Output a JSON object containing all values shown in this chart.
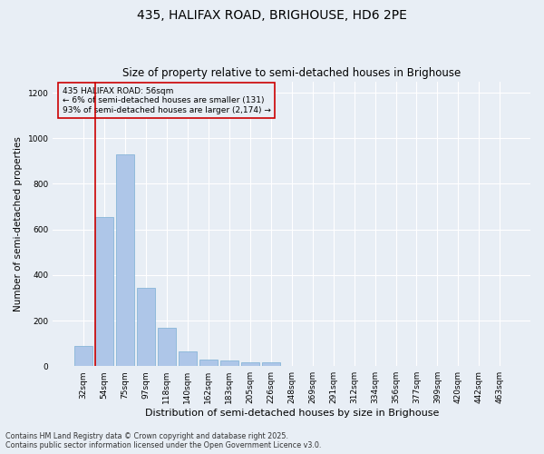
{
  "title": "435, HALIFAX ROAD, BRIGHOUSE, HD6 2PE",
  "subtitle": "Size of property relative to semi-detached houses in Brighouse",
  "xlabel": "Distribution of semi-detached houses by size in Brighouse",
  "ylabel": "Number of semi-detached properties",
  "categories": [
    "32sqm",
    "54sqm",
    "75sqm",
    "97sqm",
    "118sqm",
    "140sqm",
    "162sqm",
    "183sqm",
    "205sqm",
    "226sqm",
    "248sqm",
    "269sqm",
    "291sqm",
    "312sqm",
    "334sqm",
    "356sqm",
    "377sqm",
    "399sqm",
    "420sqm",
    "442sqm",
    "463sqm"
  ],
  "values": [
    90,
    655,
    930,
    345,
    170,
    65,
    30,
    25,
    18,
    15,
    0,
    0,
    0,
    0,
    0,
    0,
    0,
    0,
    0,
    0,
    0
  ],
  "bar_color": "#aec6e8",
  "bar_edge_color": "#7aafd4",
  "background_color": "#e8eef5",
  "grid_color": "#ffffff",
  "vline_color": "#cc0000",
  "annotation_text": "435 HALIFAX ROAD: 56sqm\n← 6% of semi-detached houses are smaller (131)\n93% of semi-detached houses are larger (2,174) →",
  "annotation_box_color": "#cc0000",
  "ylim": [
    0,
    1250
  ],
  "yticks": [
    0,
    200,
    400,
    600,
    800,
    1000,
    1200
  ],
  "footnote": "Contains HM Land Registry data © Crown copyright and database right 2025.\nContains public sector information licensed under the Open Government Licence v3.0.",
  "title_fontsize": 10,
  "subtitle_fontsize": 8.5,
  "xlabel_fontsize": 8,
  "ylabel_fontsize": 7.5,
  "tick_fontsize": 6.5,
  "footnote_fontsize": 5.8,
  "annotation_fontsize": 6.5
}
